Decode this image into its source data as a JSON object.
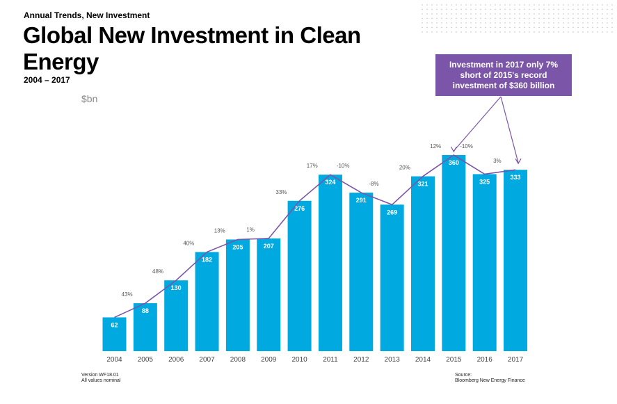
{
  "header": {
    "supertitle": "Annual Trends, New Investment",
    "title": "Global New Investment in Clean Energy",
    "daterange": "2004 – 2017",
    "unit": "$bn"
  },
  "callout": {
    "text": "Investment in 2017 only 7% short of 2015's record investment of $360 billion"
  },
  "footer": {
    "version": "Version WF18.01",
    "note": "All values nominal",
    "source_label": "Source:",
    "source": "Bloomberg New Energy Finance"
  },
  "colors": {
    "bar": "#00a9e0",
    "line": "#7b56a8",
    "callout": "#7b56a8"
  },
  "chart_data": {
    "type": "bar",
    "title": "Global New Investment in Clean Energy",
    "ylabel": "$bn",
    "xlabel": "",
    "ylim": [
      0,
      400
    ],
    "categories": [
      "2004",
      "2005",
      "2006",
      "2007",
      "2008",
      "2009",
      "2010",
      "2011",
      "2012",
      "2013",
      "2014",
      "2015",
      "2016",
      "2017"
    ],
    "values": [
      62,
      88,
      130,
      182,
      205,
      207,
      276,
      324,
      291,
      269,
      321,
      360,
      325,
      333
    ],
    "growth_labels": [
      "",
      "43%",
      "48%",
      "40%",
      "13%",
      "1%",
      "33%",
      "17%",
      "-10%",
      "-8%",
      "20%",
      "12%",
      "-10%",
      "3%"
    ],
    "overlay_line": "trend line connecting bar tops"
  }
}
